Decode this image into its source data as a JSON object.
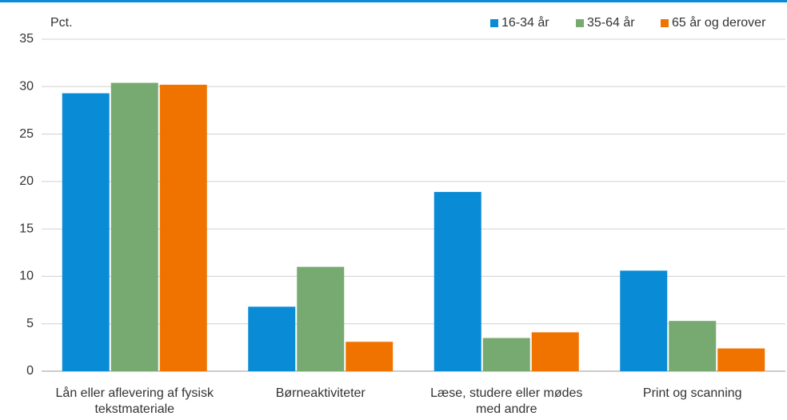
{
  "chart_data": {
    "type": "bar",
    "y_axis_label": "Pct.",
    "categories": [
      "Lån eller aflevering af fysisk\ntekstmateriale",
      "Børneaktiviteter",
      "Læse, studere eller mødes\nmed andre",
      "Print og scanning"
    ],
    "series": [
      {
        "name": "16-34 år",
        "color": "#0a8bd6",
        "values": [
          29.3,
          6.8,
          18.9,
          10.6
        ]
      },
      {
        "name": "35-64 år",
        "color": "#77aa70",
        "values": [
          30.4,
          11.0,
          3.5,
          5.3
        ]
      },
      {
        "name": "65 år og derover",
        "color": "#f07300",
        "values": [
          30.2,
          3.1,
          4.1,
          2.4
        ]
      }
    ],
    "ylim": [
      0,
      35
    ],
    "yticks": [
      0,
      5,
      10,
      15,
      20,
      25,
      30,
      35
    ],
    "grid": true,
    "legend": "top-right"
  }
}
